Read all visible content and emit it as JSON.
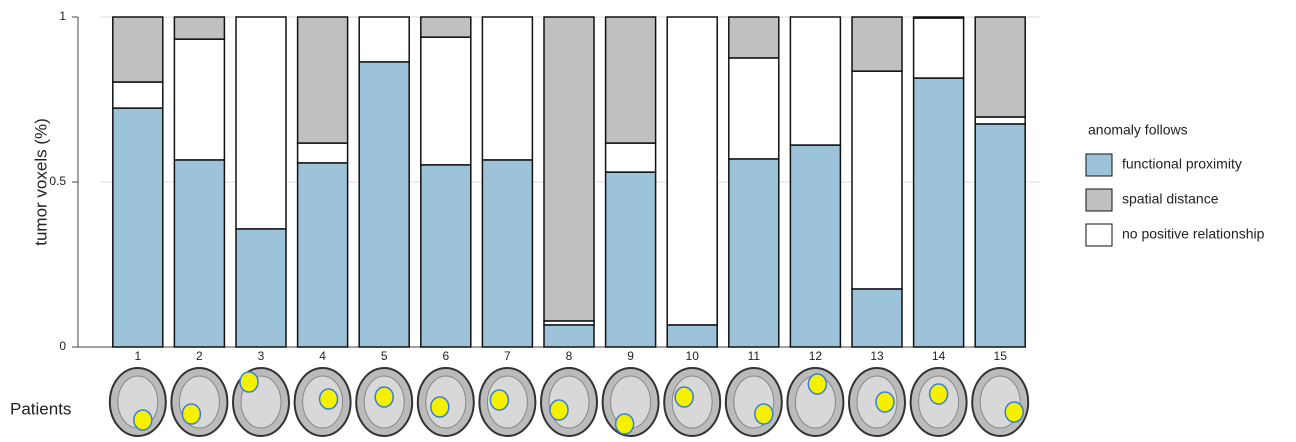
{
  "chart_data": {
    "type": "stacked-bar",
    "y_label": "tumor voxels (%)",
    "x_label": "Patients",
    "legend_title": "anomaly follows",
    "categories": [
      "1",
      "2",
      "3",
      "4",
      "5",
      "6",
      "7",
      "8",
      "9",
      "10",
      "11",
      "12",
      "13",
      "14",
      "15"
    ],
    "series": [
      {
        "name": "functional proximity",
        "color": "#9dc3da",
        "values": [
          0.724,
          0.567,
          0.358,
          0.558,
          0.864,
          0.552,
          0.567,
          0.067,
          0.53,
          0.067,
          0.57,
          0.612,
          0.176,
          0.815,
          0.676
        ]
      },
      {
        "name": "spatial distance",
        "color": "#c0c0c0",
        "values": [
          0.197,
          0.067,
          0,
          0.382,
          0,
          0.061,
          0,
          0.921,
          0.382,
          0,
          0.124,
          0,
          0.164,
          0.003,
          0.303
        ]
      },
      {
        "name": "no positive relationship",
        "color": "#ffffff",
        "values": [
          0.079,
          0.366,
          0.642,
          0.06,
          0.136,
          0.387,
          0.433,
          0.012,
          0.088,
          0.933,
          0.306,
          0.388,
          0.66,
          0.182,
          0.021
        ]
      }
    ],
    "ylim": [
      0,
      1
    ],
    "yticks": [
      0,
      0.5,
      1
    ],
    "grid": true
  }
}
